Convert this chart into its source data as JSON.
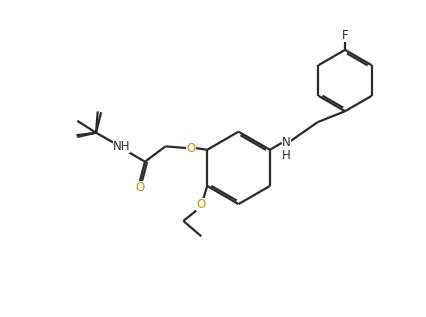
{
  "bg_color": "#ffffff",
  "line_color": "#2b2b2b",
  "line_width": 1.6,
  "figsize": [
    4.26,
    3.17
  ],
  "dpi": 100,
  "font_size": 8.5,
  "hetero_color": "#c8900a",
  "label_color": "#2b2b2b",
  "xlim": [
    0,
    10
  ],
  "ylim": [
    0,
    7.44
  ]
}
